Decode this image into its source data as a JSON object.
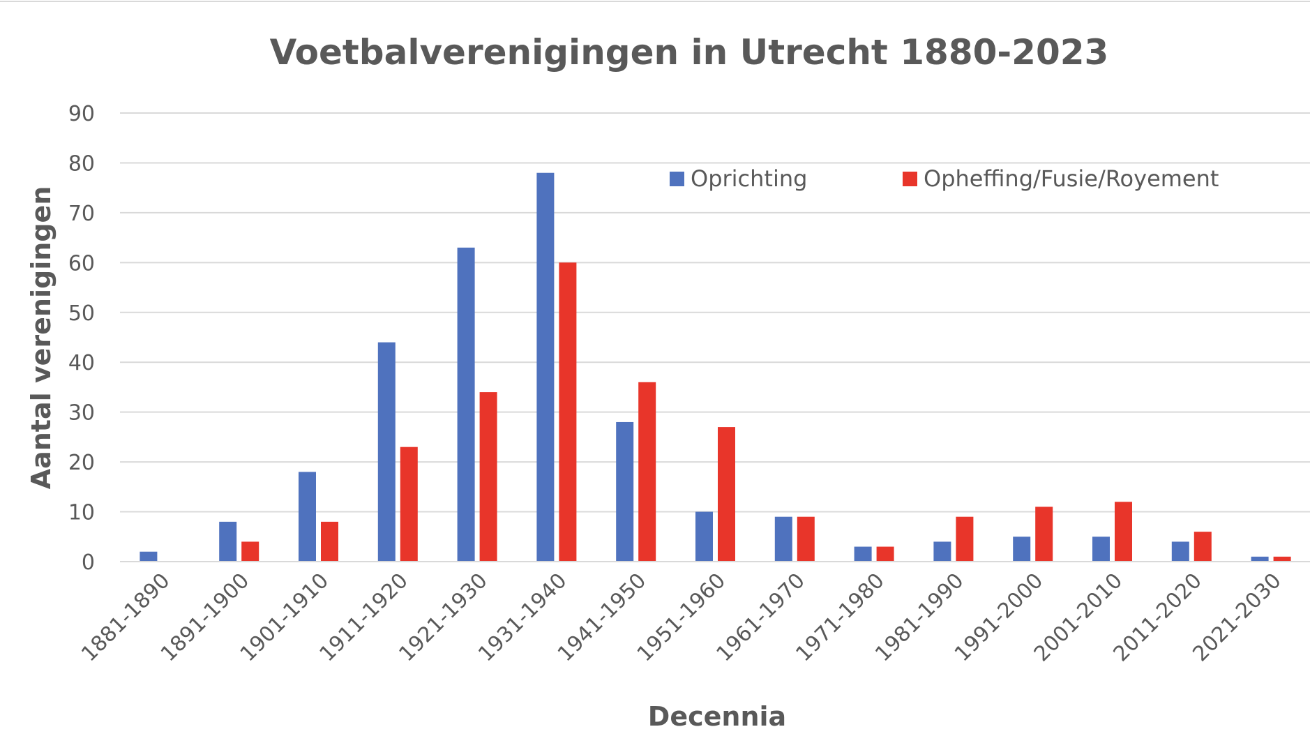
{
  "chart_data": {
    "type": "bar",
    "title": "Voetbalverenigingen in Utrecht 1880-2023",
    "xlabel": "Decennia",
    "ylabel": "Aantal verenigingen",
    "ylim": [
      0,
      90
    ],
    "yticks": [
      0,
      10,
      20,
      30,
      40,
      50,
      60,
      70,
      80,
      90
    ],
    "grid": true,
    "legend_position": "top-right",
    "categories": [
      "1881-1890",
      "1891-1900",
      "1901-1910",
      "1911-1920",
      "1921-1930",
      "1931-1940",
      "1941-1950",
      "1951-1960",
      "1961-1970",
      "1971-1980",
      "1981-1990",
      "1991-2000",
      "2001-2010",
      "2011-2020",
      "2021-2030"
    ],
    "series": [
      {
        "name": "Oprichting",
        "color": "#4f72be",
        "values": [
          2,
          8,
          18,
          44,
          63,
          78,
          28,
          10,
          9,
          3,
          4,
          5,
          5,
          4,
          1
        ]
      },
      {
        "name": "Opheffing/Fusie/Royement",
        "color": "#e8352a",
        "values": [
          0,
          4,
          8,
          23,
          34,
          60,
          36,
          27,
          9,
          3,
          9,
          11,
          12,
          6,
          1
        ]
      }
    ]
  }
}
